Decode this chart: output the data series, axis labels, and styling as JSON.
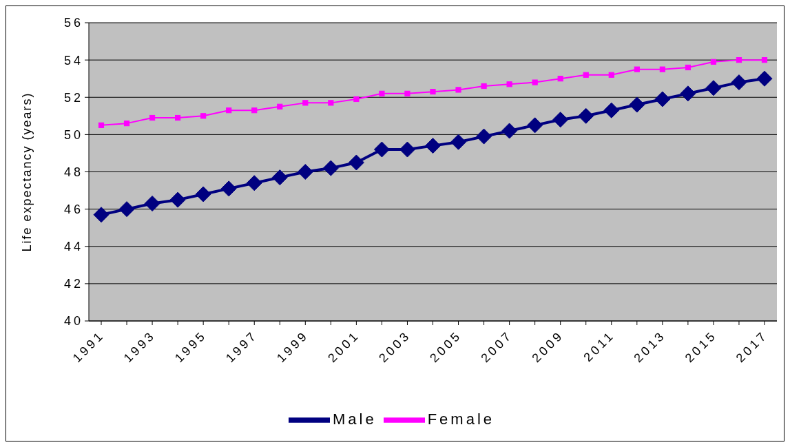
{
  "chart_data": {
    "type": "line",
    "categories": [
      "1991",
      null,
      "1993",
      null,
      "1995",
      null,
      "1997",
      null,
      "1999",
      null,
      "2001",
      null,
      "2003",
      null,
      "2005",
      null,
      "2007",
      null,
      "2009",
      null,
      "2011",
      null,
      "2013",
      null,
      "2015",
      null,
      "2017"
    ],
    "series": [
      {
        "name": "Male",
        "color": "#000080",
        "marker": "diamond",
        "values": [
          45.7,
          46.0,
          46.3,
          46.5,
          46.8,
          47.1,
          47.4,
          47.7,
          48.0,
          48.2,
          48.5,
          49.2,
          49.2,
          49.4,
          49.6,
          49.9,
          50.2,
          50.5,
          50.8,
          51.0,
          51.3,
          51.6,
          51.9,
          52.2,
          52.5,
          52.8,
          53.0
        ]
      },
      {
        "name": "Female",
        "color": "#ff00ff",
        "marker": "square",
        "values": [
          50.5,
          50.6,
          50.9,
          50.9,
          51.0,
          51.3,
          51.3,
          51.5,
          51.7,
          51.7,
          51.9,
          52.2,
          52.2,
          52.3,
          52.4,
          52.6,
          52.7,
          52.8,
          53.0,
          53.2,
          53.2,
          53.5,
          53.5,
          53.6,
          53.9,
          54.0,
          54.0
        ]
      }
    ],
    "ylabel": "Life expectancy (years)",
    "ylim": [
      40,
      56
    ],
    "yticks": [
      40,
      42,
      44,
      46,
      48,
      50,
      52,
      54,
      56
    ],
    "grid": "y",
    "legend": "bottom"
  }
}
